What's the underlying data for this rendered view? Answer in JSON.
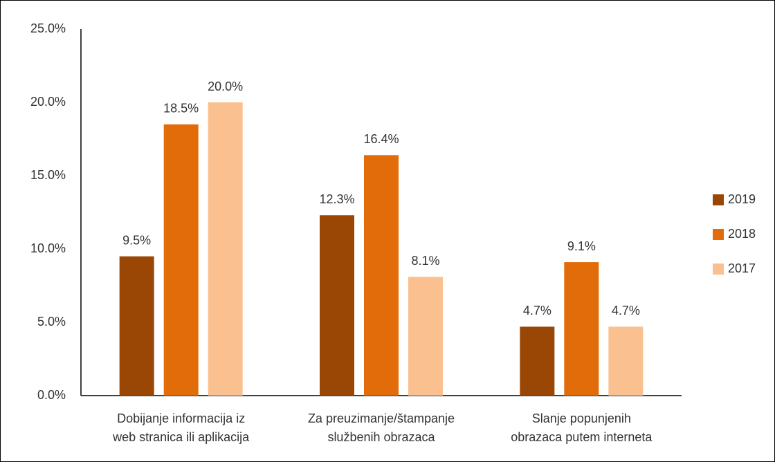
{
  "chart_data": {
    "type": "bar",
    "categories": [
      "Dobijanje informacija iz\nweb stranica ili aplikacija",
      "Za preuzimanje/štampanje\nslužbenih obrazaca",
      "Slanje popunjenih\nobrazaca putem interneta"
    ],
    "series": [
      {
        "name": "2019",
        "color": "#9a4706",
        "values": [
          9.5,
          12.3,
          4.7
        ],
        "value_labels": [
          "9.5%",
          "12.3%",
          "4.7%"
        ]
      },
      {
        "name": "2018",
        "color": "#e36c0a",
        "values": [
          18.5,
          16.4,
          9.1
        ],
        "value_labels": [
          "18.5%",
          "16.4%",
          "9.1%"
        ]
      },
      {
        "name": "2017",
        "color": "#fac090",
        "values": [
          20.0,
          8.1,
          4.7
        ],
        "value_labels": [
          "20.0%",
          "8.1%",
          "4.7%"
        ]
      }
    ],
    "ylim": [
      0,
      25
    ],
    "yticks": [
      {
        "value": 0,
        "label": "0.0%"
      },
      {
        "value": 5,
        "label": "5.0%"
      },
      {
        "value": 10,
        "label": "10.0%"
      },
      {
        "value": 15,
        "label": "15.0%"
      },
      {
        "value": 20,
        "label": "20.0%"
      },
      {
        "value": 25,
        "label": "25.0%"
      }
    ],
    "legend": "right"
  }
}
